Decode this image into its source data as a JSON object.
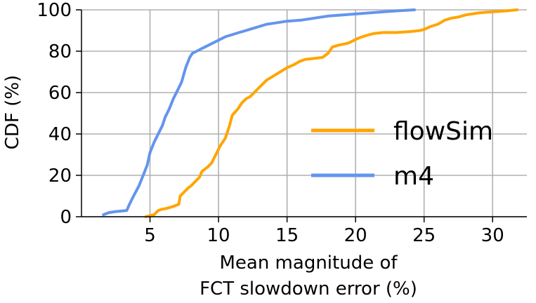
{
  "chart_data": {
    "type": "line",
    "title": "",
    "xlabel_lines": [
      "Mean magnitude of",
      "FCT slowdown error (%)"
    ],
    "ylabel": "CDF (%)",
    "xlim": [
      0,
      32.5
    ],
    "ylim": [
      0,
      100
    ],
    "xticks": [
      5,
      10,
      15,
      20,
      25,
      30
    ],
    "yticks": [
      0,
      20,
      40,
      60,
      80,
      100
    ],
    "grid": true,
    "legend_position": "center-right",
    "series": [
      {
        "name": "flowSim",
        "color": "#FFA500",
        "x": [
          4.7,
          5.3,
          5.6,
          5.8,
          6.2,
          6.7,
          7.1,
          7.2,
          7.5,
          7.8,
          8.0,
          8.3,
          8.6,
          8.8,
          9.2,
          9.5,
          9.8,
          10.1,
          10.5,
          10.8,
          11.0,
          11.4,
          11.7,
          12.0,
          12.3,
          12.6,
          12.9,
          13.2,
          13.5,
          14.0,
          14.5,
          15.0,
          15.5,
          15.9,
          16.3,
          17.0,
          17.6,
          18.0,
          18.3,
          18.8,
          19.2,
          19.5,
          19.8,
          20.1,
          20.5,
          21.0,
          21.3,
          22.0,
          23.0,
          24.0,
          24.7,
          25.0,
          25.5,
          26.0,
          26.5,
          27.0,
          27.5,
          28.0,
          28.5,
          29.0,
          29.5,
          30.0,
          31.0,
          31.8
        ],
        "y": [
          0,
          1,
          3,
          3.5,
          4,
          5,
          6,
          10,
          12,
          14,
          15,
          17,
          19,
          22,
          24,
          26,
          30,
          34,
          38,
          44,
          49,
          52,
          55,
          57,
          58,
          60,
          62,
          64,
          66,
          68,
          70,
          72,
          73.5,
          75,
          76,
          76.5,
          77,
          79,
          82,
          83,
          83.5,
          84,
          85,
          86,
          87,
          88,
          88.5,
          89,
          89,
          89.5,
          90,
          90.5,
          92,
          93,
          95,
          96,
          96.5,
          97.5,
          98,
          98.5,
          98.8,
          99,
          99.5,
          100
        ]
      },
      {
        "name": "m4",
        "color": "#6495ED",
        "x": [
          1.6,
          2.0,
          2.5,
          3.3,
          3.5,
          3.8,
          4.2,
          4.5,
          4.8,
          5.0,
          5.3,
          5.6,
          5.9,
          6.1,
          6.4,
          6.7,
          7.0,
          7.3,
          7.6,
          7.9,
          8.1,
          8.4,
          8.7,
          9.0,
          9.3,
          9.6,
          9.9,
          10.2,
          10.5,
          11.0,
          11.5,
          12.0,
          12.5,
          13.0,
          13.5,
          14.0,
          14.5,
          15.0,
          16.0,
          17.0,
          18.0,
          19.0,
          20.0,
          21.0,
          22.0,
          23.0,
          24.3
        ],
        "y": [
          1,
          2,
          2.5,
          3,
          6,
          10,
          15,
          20,
          25,
          31,
          36,
          40,
          44,
          48,
          52,
          57,
          61,
          65,
          72,
          77,
          79,
          80,
          81,
          82,
          83,
          84,
          85,
          86,
          87,
          88,
          89,
          90,
          91,
          92,
          93,
          93.5,
          94,
          94.5,
          95,
          96,
          97,
          97.5,
          98,
          98.5,
          99,
          99.5,
          100
        ]
      }
    ]
  }
}
